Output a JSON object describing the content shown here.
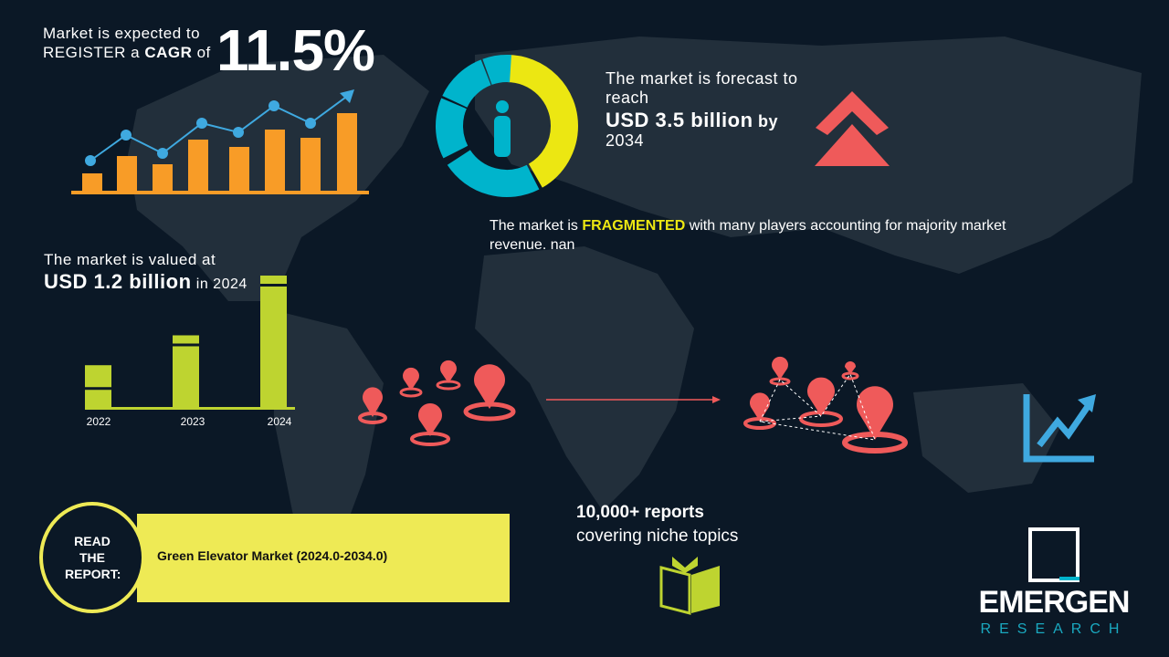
{
  "cagr": {
    "line1": "Market is expected to",
    "line2_a": "REGISTER a ",
    "line2_b": "CAGR",
    "line2_c": " of",
    "value": "11.5%"
  },
  "forecast": {
    "line1": "The market is forecast to",
    "line2": "reach",
    "value": "USD 3.5 billion",
    "by": "by",
    "year": "2034"
  },
  "fragmented": {
    "pre": "The market is ",
    "keyword": "FRAGMENTED",
    "post": " with many players accounting for majority market",
    "line2": "revenue. nan"
  },
  "valued": {
    "line1": "The market is valued at",
    "value": "USD 1.2 billion",
    "suffix": "in 2024"
  },
  "chart_data": {
    "type": "bar",
    "categories": [
      "2022",
      "2023",
      "2024"
    ],
    "values": [
      1,
      1.7,
      3.1
    ]
  },
  "read_report": {
    "label": "READ THE REPORT:",
    "title": "Green Elevator Market (2024.0-2034.0)"
  },
  "reports": {
    "line1": "10,000+ reports",
    "line2": "covering niche topics"
  },
  "logo": {
    "name": "EMERGEN",
    "sub": "RESEARCH"
  },
  "colors": {
    "background": "#0b1826",
    "orange": "#f89c27",
    "blue": "#3fa9e0",
    "yellow": "#ece712",
    "cyan": "#00b4cc",
    "red": "#ef5a5a",
    "green": "#bed430",
    "banner": "#eeea55"
  }
}
